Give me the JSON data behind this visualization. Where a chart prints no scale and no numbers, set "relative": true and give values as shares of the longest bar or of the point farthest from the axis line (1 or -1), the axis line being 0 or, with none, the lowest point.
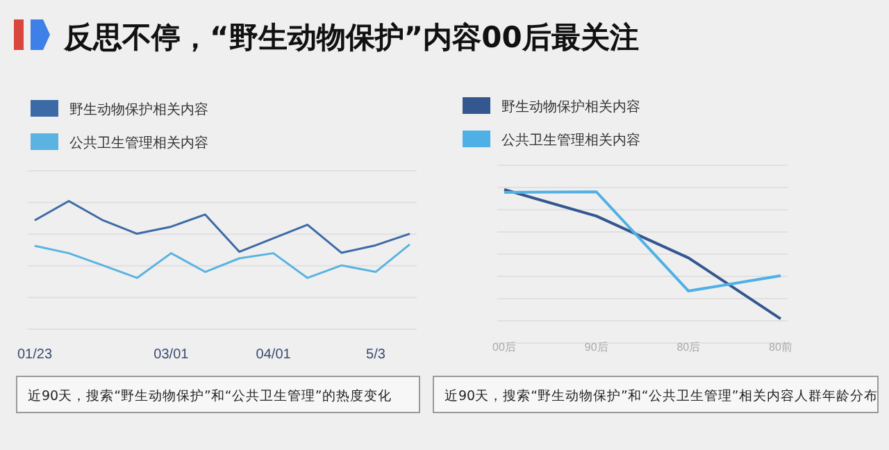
{
  "chart_data": [
    {
      "type": "line",
      "title": "反思不停，“野生动物保护”内容00后最关注",
      "categories": [
        "01/23",
        null,
        null,
        null,
        "03/01",
        null,
        null,
        "04/01",
        null,
        null,
        "5/3",
        null
      ],
      "relative": true,
      "grid": true,
      "legend": "top left",
      "series": [
        {
          "name": "野生动物保护相关内容",
          "color": "#3c6aa6",
          "values": [
            0.85,
            1.0,
            0.85,
            0.745,
            0.8,
            0.895,
            0.604,
            0.709,
            0.815,
            0.596,
            0.655,
            0.745
          ]
        },
        {
          "name": "公共卫生管理相关内容",
          "color": "#5ab3e0",
          "values": [
            0.651,
            0.593,
            0.498,
            0.4,
            0.593,
            0.447,
            0.553,
            0.593,
            0.4,
            0.498,
            0.447,
            0.662
          ]
        }
      ],
      "annotations": [
        "近90天，搜索“野生动物保护”和“公共卫生管理”的热度变化"
      ]
    },
    {
      "type": "line",
      "categories": [
        "00后",
        "90后",
        "80后",
        "80前"
      ],
      "relative": true,
      "grid": true,
      "legend": "top left",
      "series": [
        {
          "name": "野生动物保护相关内容",
          "color": "#34578f",
          "values": [
            1.0,
            0.827,
            0.555,
            0.158
          ]
        },
        {
          "name": "公共卫生管理相关内容",
          "color": "#4fb0e6",
          "values": [
            0.982,
            0.985,
            0.339,
            0.439
          ]
        }
      ],
      "annotations": [
        "近90天，搜索“野生动物保护”和“公共卫生管理”相关内容人群年龄分布"
      ]
    }
  ]
}
